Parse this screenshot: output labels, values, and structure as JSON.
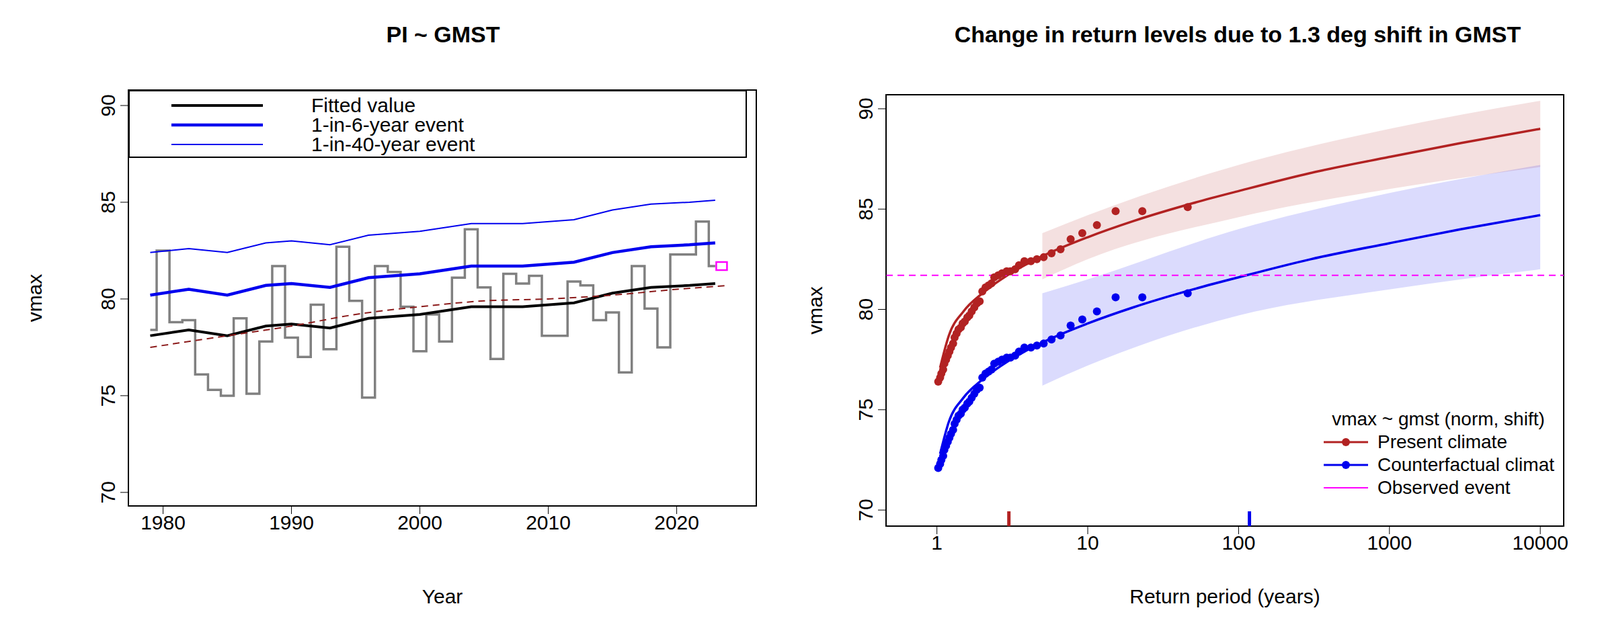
{
  "chart_data": [
    {
      "type": "line",
      "title": "PI ~ GMST",
      "x_label": "Year",
      "y_label": "vmax",
      "xlim": [
        1977.3,
        2026.2
      ],
      "xticks": [
        1980,
        1990,
        2000,
        2010,
        2020
      ],
      "ylim": [
        69.3,
        90.8
      ],
      "yticks": [
        70,
        75,
        80,
        85,
        90
      ],
      "legend": "top",
      "series": [
        {
          "type": "step",
          "color": "#808080",
          "x": [
            1979,
            1980,
            1981,
            1982,
            1983,
            1984,
            1985,
            1986,
            1987,
            1988,
            1989,
            1990,
            1991,
            1992,
            1993,
            1994,
            1995,
            1996,
            1997,
            1998,
            1999,
            2000,
            2001,
            2002,
            2003,
            2004,
            2005,
            2006,
            2007,
            2008,
            2009,
            2010,
            2011,
            2012,
            2013,
            2014,
            2015,
            2016,
            2017,
            2018,
            2019,
            2020,
            2021,
            2022,
            2023
          ],
          "values": [
            78.4,
            82.5,
            78.8,
            78.9,
            76.1,
            75.3,
            75.0,
            79.0,
            75.1,
            77.8,
            81.7,
            78.0,
            77.0,
            79.7,
            77.4,
            82.7,
            79.9,
            74.9,
            81.7,
            81.4,
            79.6,
            77.3,
            79.2,
            77.8,
            81.1,
            83.6,
            80.6,
            76.9,
            81.3,
            80.8,
            81.2,
            78.1,
            78.1,
            80.9,
            80.7,
            78.9,
            79.3,
            76.2,
            81.7,
            79.5,
            77.5,
            82.3,
            82.3,
            84.0,
            81.7
          ]
        },
        {
          "name": "Fitted value",
          "color": "#000000",
          "x": [
            1979,
            1982,
            1985,
            1988,
            1990,
            1993,
            1996,
            2000,
            2004,
            2008,
            2012,
            2015,
            2018,
            2021,
            2023
          ],
          "values": [
            78.1,
            78.4,
            78.1,
            78.6,
            78.7,
            78.5,
            79.0,
            79.2,
            79.6,
            79.6,
            79.8,
            80.3,
            80.6,
            80.7,
            80.8
          ]
        },
        {
          "name": "1-in-6-year event",
          "color": "#0000ee",
          "x": [
            1979,
            1982,
            1985,
            1988,
            1990,
            1993,
            1996,
            2000,
            2004,
            2008,
            2012,
            2015,
            2018,
            2021,
            2023
          ],
          "values": [
            80.2,
            80.5,
            80.2,
            80.7,
            80.8,
            80.6,
            81.1,
            81.3,
            81.7,
            81.7,
            81.9,
            82.4,
            82.7,
            82.8,
            82.9
          ]
        },
        {
          "name": "1-in-40-year event",
          "color": "#0000ee",
          "x": [
            1979,
            1982,
            1985,
            1988,
            1990,
            1993,
            1996,
            2000,
            2004,
            2008,
            2012,
            2015,
            2018,
            2021,
            2023
          ],
          "values": [
            82.4,
            82.6,
            82.4,
            82.9,
            83.0,
            82.8,
            83.3,
            83.5,
            83.9,
            83.9,
            84.1,
            84.6,
            84.9,
            85.0,
            85.1
          ]
        },
        {
          "color": "#8b1a1a",
          "line_style": "dashed",
          "x": [
            1979,
            1985,
            1990,
            1995,
            2000,
            2005,
            2010,
            2015,
            2020,
            2024
          ],
          "values": [
            77.5,
            78.1,
            78.6,
            79.2,
            79.6,
            79.9,
            80.0,
            80.2,
            80.5,
            80.7
          ]
        },
        {
          "type": "scatter",
          "marker": "square",
          "color": "#ff00ff",
          "x": [
            2023.5
          ],
          "values": [
            81.7
          ]
        }
      ]
    },
    {
      "type": "line",
      "title": "Change in return levels due to 1.3 deg shift in GMST",
      "x_label": "Return period (years)",
      "y_label": "vmax",
      "log": "x",
      "xlim": [
        0.46,
        14300
      ],
      "xticks": [
        1,
        10,
        100,
        1000,
        10000
      ],
      "ylim": [
        69.2,
        90.7
      ],
      "yticks": [
        70,
        75,
        80,
        85,
        90
      ],
      "legend": "bottomright",
      "legend_title": "vmax ~ gmst (norm, shift)",
      "series": [
        {
          "name": "Present climate",
          "color": "#b22222",
          "marker": "circle",
          "x": [
            1.05,
            1.2,
            1.5,
            2,
            3,
            5,
            10,
            20,
            50,
            100,
            300,
            1000,
            3000,
            10000
          ],
          "values": [
            77.1,
            78.7,
            79.9,
            80.8,
            81.75,
            82.65,
            83.6,
            84.4,
            85.3,
            85.9,
            86.8,
            87.6,
            88.3,
            89.0
          ],
          "points": {
            "x": [
              46,
              23,
              15.3,
              11.5,
              9.2,
              7.7,
              6.6,
              5.75,
              5.1,
              4.6,
              4.2,
              3.8,
              3.5,
              3.3,
              3.07,
              2.9,
              2.7,
              2.55,
              2.4,
              2.3,
              2.2,
              2.1,
              2.0,
              1.92,
              1.84,
              1.77,
              1.7,
              1.64,
              1.59,
              1.53,
              1.48,
              1.44,
              1.39,
              1.35,
              1.31,
              1.28,
              1.24,
              1.21,
              1.18,
              1.15,
              1.12,
              1.1,
              1.07,
              1.05,
              1.02
            ],
            "values": [
              85.1,
              84.9,
              84.9,
              84.2,
              83.8,
              83.5,
              83.0,
              82.8,
              82.6,
              82.5,
              82.4,
              82.4,
              82.2,
              82.0,
              81.9,
              81.9,
              81.8,
              81.7,
              81.6,
              81.3,
              81.2,
              81.1,
              80.9,
              80.4,
              80.3,
              80.1,
              79.9,
              79.7,
              79.6,
              79.4,
              79.3,
              79.1,
              79.0,
              78.8,
              78.6,
              78.3,
              78.1,
              77.9,
              77.7,
              77.5,
              77.3,
              77.0,
              76.8,
              76.6,
              76.4
            ]
          },
          "band": {
            "x": [
              5,
              10,
              100,
              1000,
              10000
            ],
            "lower": [
              81.5,
              82.5,
              84.6,
              86.0,
              87.1
            ],
            "upper": [
              83.8,
              84.7,
              87.2,
              89.0,
              90.4
            ]
          },
          "event_return_period": 3.0
        },
        {
          "name": "Counterfactual climat",
          "color": "#0000ee",
          "marker": "circle",
          "x": [
            1.05,
            1.2,
            1.5,
            2,
            3,
            5,
            10,
            20,
            50,
            100,
            300,
            1000,
            3000,
            10000
          ],
          "values": [
            72.8,
            74.4,
            75.6,
            76.5,
            77.45,
            78.35,
            79.3,
            80.1,
            81.0,
            81.6,
            82.5,
            83.3,
            84.0,
            84.7
          ],
          "points": {
            "x": [
              46,
              23,
              15.3,
              11.5,
              9.2,
              7.7,
              6.6,
              5.75,
              5.1,
              4.6,
              4.2,
              3.8,
              3.5,
              3.3,
              3.07,
              2.9,
              2.7,
              2.55,
              2.4,
              2.3,
              2.2,
              2.1,
              2.0,
              1.92,
              1.84,
              1.77,
              1.7,
              1.64,
              1.59,
              1.53,
              1.48,
              1.44,
              1.39,
              1.35,
              1.31,
              1.28,
              1.24,
              1.21,
              1.18,
              1.15,
              1.12,
              1.1,
              1.07,
              1.05,
              1.02
            ],
            "values": [
              80.8,
              80.6,
              80.6,
              79.9,
              79.5,
              79.2,
              78.7,
              78.5,
              78.3,
              78.2,
              78.1,
              78.1,
              77.9,
              77.7,
              77.6,
              77.6,
              77.5,
              77.4,
              77.3,
              77.0,
              76.9,
              76.8,
              76.6,
              76.1,
              76.0,
              75.8,
              75.6,
              75.4,
              75.3,
              75.1,
              75.0,
              74.8,
              74.7,
              74.5,
              74.3,
              74.0,
              73.8,
              73.6,
              73.4,
              73.2,
              73.0,
              72.7,
              72.5,
              72.3,
              72.1
            ]
          },
          "band": {
            "x": [
              5,
              10,
              100,
              1000,
              10000
            ],
            "lower": [
              76.2,
              77.2,
              79.7,
              81.0,
              82.0
            ],
            "upper": [
              80.8,
              81.5,
              84.0,
              85.8,
              87.2
            ]
          },
          "event_return_period": 118
        },
        {
          "name": "Observed event",
          "type": "hline",
          "color": "#ff00ff",
          "line_style": "dashed",
          "values": [
            81.7
          ]
        }
      ]
    }
  ]
}
